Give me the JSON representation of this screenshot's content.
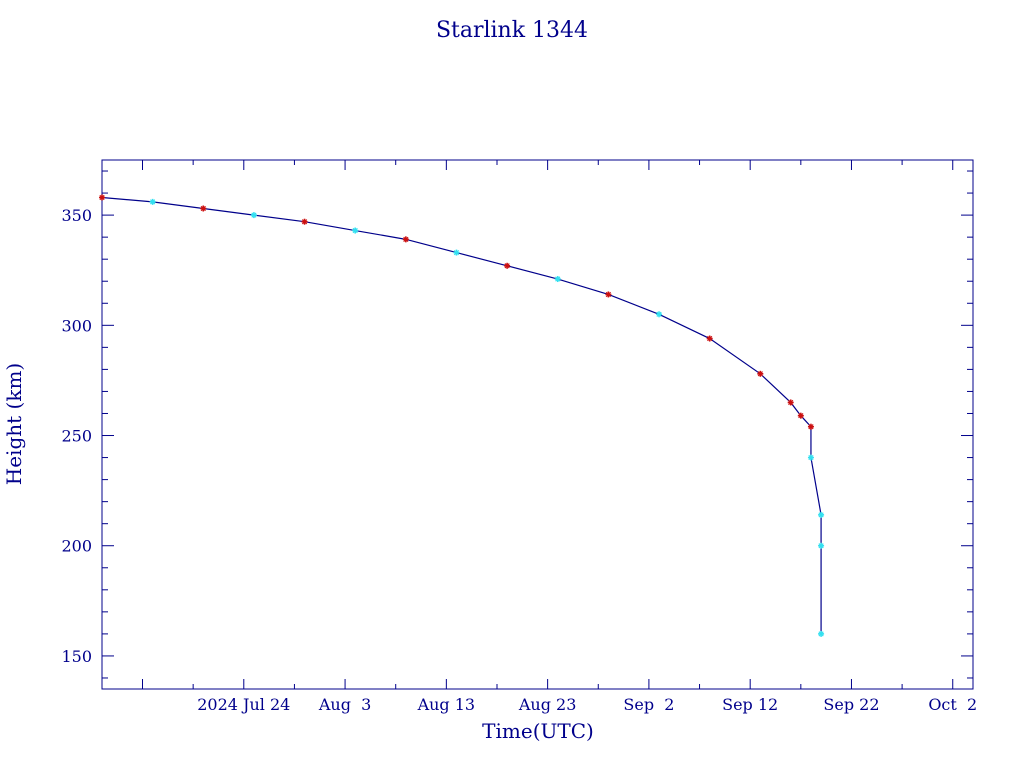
{
  "chart_data": {
    "type": "line",
    "title": "Starlink 1344",
    "xlabel": "Time(UTC)",
    "ylabel": "Height (km)",
    "x_tick_labels": [
      "2024 Jul 24",
      "Aug  3",
      "Aug 13",
      "Aug 23",
      "Sep  2",
      "Sep 12",
      "Sep 22",
      "Oct  2"
    ],
    "x_tick_dates": [
      "2024-07-24",
      "2024-08-03",
      "2024-08-13",
      "2024-08-23",
      "2024-09-02",
      "2024-09-12",
      "2024-09-22",
      "2024-10-02"
    ],
    "y_ticks": [
      150,
      200,
      250,
      300,
      350
    ],
    "xlim": [
      "2024-07-10",
      "2024-10-04"
    ],
    "ylim": [
      135,
      375
    ],
    "colors": {
      "axis": "#00008b",
      "line": "#00008b",
      "marker_a": "#cc1111",
      "marker_b": "#33e0f0"
    },
    "series": [
      {
        "x": [
          "2024-07-10",
          "2024-07-15",
          "2024-07-20",
          "2024-07-25",
          "2024-07-30",
          "2024-08-04",
          "2024-08-09",
          "2024-08-14",
          "2024-08-19",
          "2024-08-24",
          "2024-08-29",
          "2024-09-03",
          "2024-09-08",
          "2024-09-13",
          "2024-09-16",
          "2024-09-17",
          "2024-09-18",
          "2024-09-18",
          "2024-09-19",
          "2024-09-19",
          "2024-09-19"
        ],
        "y": [
          358,
          356,
          353,
          350,
          347,
          343,
          339,
          333,
          327,
          321,
          314,
          305,
          294,
          278,
          265,
          259,
          254,
          240,
          214,
          200,
          160
        ],
        "markers": [
          "a",
          "b",
          "a",
          "b",
          "a",
          "b",
          "a",
          "b",
          "a",
          "b",
          "a",
          "b",
          "a",
          "a",
          "a",
          "a",
          "a",
          "b",
          "b",
          "b",
          "b"
        ]
      }
    ]
  }
}
